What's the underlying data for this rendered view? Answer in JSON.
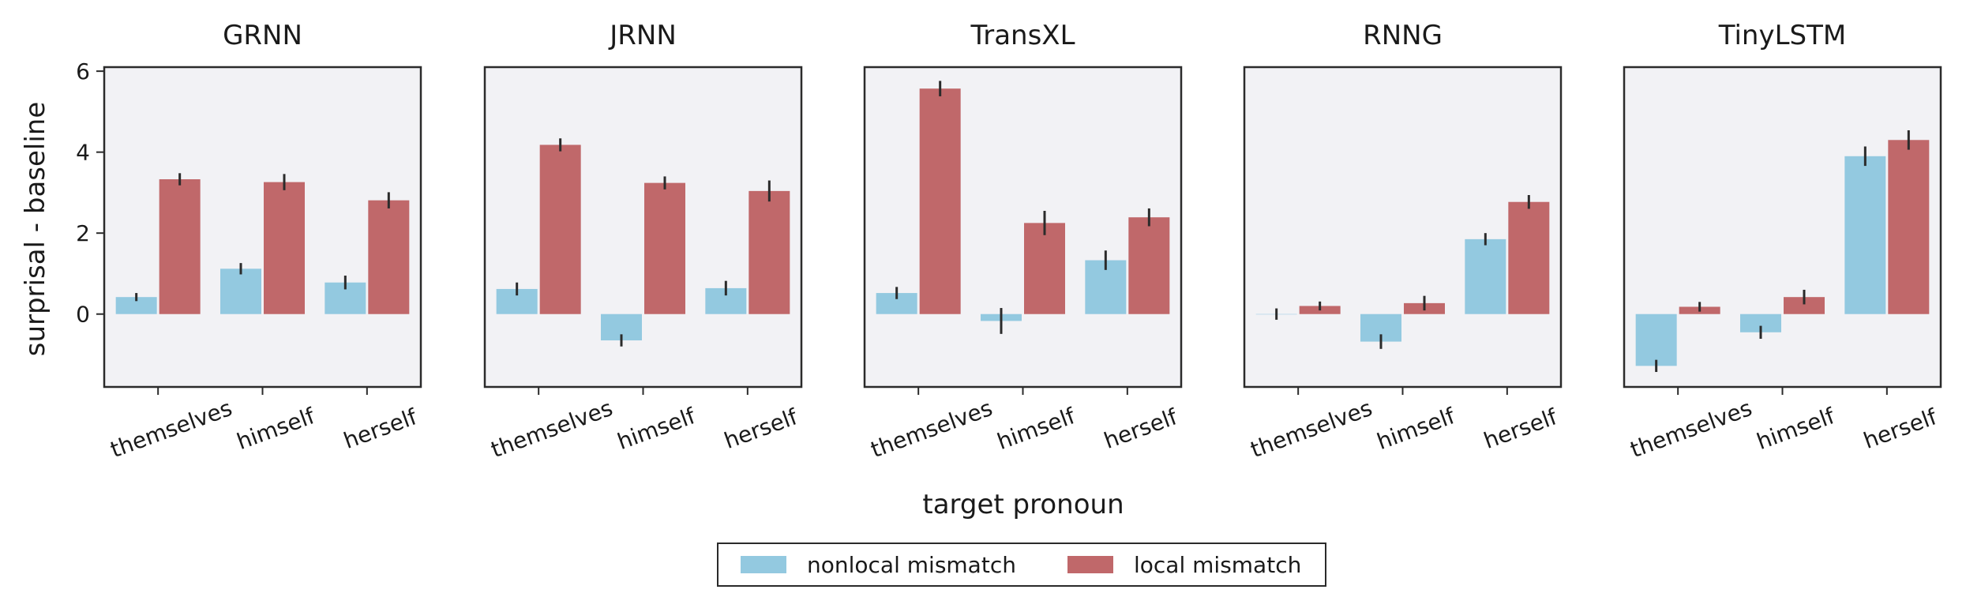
{
  "chart_data": {
    "type": "bar",
    "ylabel": "surprisal - baseline",
    "xlabel": "target pronoun",
    "categories": [
      "themselves",
      "himself",
      "herself"
    ],
    "ylim": [
      -1.8,
      6.1
    ],
    "yticks": [
      0,
      2,
      4,
      6
    ],
    "legend_position": "bottom-center",
    "grid": false,
    "series_colors": {
      "nonlocal": "#93c9e0",
      "local": "#c0686a"
    },
    "legend": [
      "nonlocal mismatch",
      "local mismatch"
    ],
    "panels": [
      {
        "title": "GRNN",
        "nonlocal": [
          0.42,
          1.12,
          0.78
        ],
        "nonlocal_err": [
          0.1,
          0.14,
          0.17
        ],
        "local": [
          3.33,
          3.26,
          2.81
        ],
        "local_err": [
          0.15,
          0.2,
          0.2
        ]
      },
      {
        "title": "JRNN",
        "nonlocal": [
          0.62,
          -0.65,
          0.64
        ],
        "nonlocal_err": [
          0.16,
          0.15,
          0.18
        ],
        "local": [
          4.18,
          3.24,
          3.04
        ],
        "local_err": [
          0.16,
          0.16,
          0.26
        ]
      },
      {
        "title": "TransXL",
        "nonlocal": [
          0.52,
          -0.17,
          1.33
        ],
        "nonlocal_err": [
          0.15,
          0.32,
          0.24
        ],
        "local": [
          5.57,
          2.25,
          2.39
        ],
        "local_err": [
          0.19,
          0.3,
          0.22
        ]
      },
      {
        "title": "RNNG",
        "nonlocal": [
          0.0,
          -0.68,
          1.85
        ],
        "nonlocal_err": [
          0.14,
          0.18,
          0.15
        ],
        "local": [
          0.2,
          0.27,
          2.77
        ],
        "local_err": [
          0.11,
          0.18,
          0.17
        ]
      },
      {
        "title": "TinyLSTM",
        "nonlocal": [
          -1.28,
          -0.45,
          3.9
        ],
        "nonlocal_err": [
          0.15,
          0.16,
          0.24
        ],
        "local": [
          0.18,
          0.42,
          4.3
        ],
        "local_err": [
          0.12,
          0.18,
          0.24
        ]
      }
    ]
  }
}
